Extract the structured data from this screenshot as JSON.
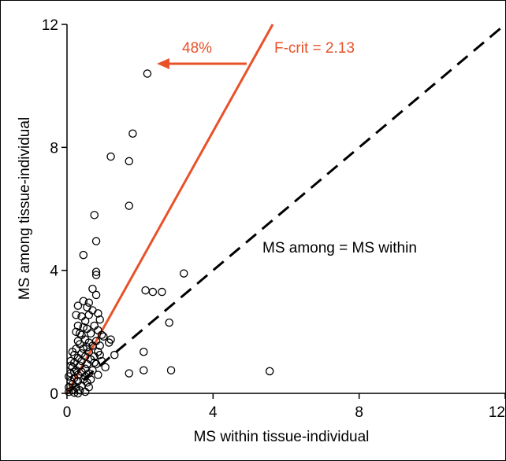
{
  "chart_data": {
    "type": "scatter",
    "title": "",
    "xlabel": "MS within tissue-individual",
    "ylabel": "MS among tissue-individual",
    "xlim": [
      0,
      12
    ],
    "ylim": [
      0,
      12
    ],
    "xticks": [
      "0",
      "4",
      "8",
      "12"
    ],
    "yticks": [
      "0",
      "4",
      "8",
      "12"
    ],
    "grid": false,
    "legend": "none",
    "colors": {
      "fcrit_line": "#e8522a",
      "identity_line": "#000000",
      "points": "#000000"
    },
    "reference_lines": [
      {
        "name": "identity",
        "label": "MS among = MS within",
        "slope": 1,
        "style": "dashed"
      },
      {
        "name": "fcrit",
        "label": "F-crit = 2.13",
        "slope": 2.13,
        "style": "solid"
      }
    ],
    "annotation": {
      "text": "48%",
      "direction": "left"
    },
    "points": [
      [
        2.2,
        10.4
      ],
      [
        1.8,
        8.45
      ],
      [
        1.2,
        7.7
      ],
      [
        1.7,
        7.55
      ],
      [
        1.7,
        6.1
      ],
      [
        0.75,
        5.8
      ],
      [
        0.8,
        4.95
      ],
      [
        0.45,
        4.5
      ],
      [
        0.8,
        3.95
      ],
      [
        0.8,
        3.85
      ],
      [
        0.7,
        3.4
      ],
      [
        3.2,
        3.9
      ],
      [
        2.15,
        3.35
      ],
      [
        2.35,
        3.3
      ],
      [
        2.6,
        3.3
      ],
      [
        0.8,
        3.2
      ],
      [
        0.45,
        3.0
      ],
      [
        0.6,
        2.95
      ],
      [
        0.3,
        2.85
      ],
      [
        0.55,
        2.8
      ],
      [
        0.7,
        2.7
      ],
      [
        0.85,
        2.6
      ],
      [
        0.4,
        2.5
      ],
      [
        0.6,
        2.55
      ],
      [
        0.9,
        2.4
      ],
      [
        0.5,
        2.35
      ],
      [
        0.3,
        2.2
      ],
      [
        0.75,
        2.2
      ],
      [
        0.55,
        2.1
      ],
      [
        0.85,
        2.05
      ],
      [
        0.25,
        2.0
      ],
      [
        0.65,
        1.95
      ],
      [
        0.95,
        1.9
      ],
      [
        0.4,
        1.9
      ],
      [
        1.0,
        1.85
      ],
      [
        0.5,
        1.75
      ],
      [
        0.8,
        1.7
      ],
      [
        1.2,
        1.75
      ],
      [
        1.15,
        1.65
      ],
      [
        0.3,
        1.7
      ],
      [
        0.6,
        1.65
      ],
      [
        0.35,
        1.6
      ],
      [
        0.9,
        1.55
      ],
      [
        0.55,
        1.5
      ],
      [
        0.7,
        1.55
      ],
      [
        0.45,
        1.45
      ],
      [
        0.25,
        1.45
      ],
      [
        1.3,
        1.25
      ],
      [
        0.85,
        1.35
      ],
      [
        0.6,
        1.35
      ],
      [
        0.4,
        1.3
      ],
      [
        0.2,
        1.25
      ],
      [
        0.5,
        1.2
      ],
      [
        0.75,
        1.2
      ],
      [
        0.3,
        1.15
      ],
      [
        0.65,
        1.1
      ],
      [
        0.95,
        1.05
      ],
      [
        0.4,
        1.05
      ],
      [
        0.2,
        1.0
      ],
      [
        0.55,
        0.95
      ],
      [
        0.8,
        0.95
      ],
      [
        0.35,
        0.9
      ],
      [
        1.05,
        0.85
      ],
      [
        0.15,
        0.85
      ],
      [
        0.5,
        0.8
      ],
      [
        0.25,
        0.75
      ],
      [
        0.7,
        0.75
      ],
      [
        0.4,
        0.7
      ],
      [
        0.6,
        0.65
      ],
      [
        0.1,
        0.65
      ],
      [
        0.3,
        0.6
      ],
      [
        0.85,
        0.6
      ],
      [
        0.5,
        0.55
      ],
      [
        0.2,
        0.5
      ],
      [
        0.45,
        0.45
      ],
      [
        0.65,
        0.45
      ],
      [
        0.1,
        0.4
      ],
      [
        0.3,
        0.4
      ],
      [
        0.55,
        0.35
      ],
      [
        0.15,
        0.3
      ],
      [
        0.4,
        0.25
      ],
      [
        0.25,
        0.2
      ],
      [
        0.6,
        0.2
      ],
      [
        0.05,
        0.2
      ],
      [
        0.35,
        0.1
      ],
      [
        0.15,
        0.1
      ],
      [
        0.5,
        0.05
      ],
      [
        0.2,
        0.02
      ],
      [
        0.05,
        0.05
      ],
      [
        0.3,
        0.0
      ],
      [
        0.1,
        1.05
      ],
      [
        0.1,
        0.9
      ],
      [
        0.2,
        0.7
      ],
      [
        0.05,
        0.55
      ],
      [
        0.15,
        1.35
      ],
      [
        0.35,
        1.95
      ],
      [
        0.45,
        2.15
      ],
      [
        0.25,
        2.55
      ],
      [
        0.75,
        1.0
      ],
      [
        0.9,
        1.25
      ],
      [
        2.1,
        1.35
      ],
      [
        1.7,
        0.65
      ],
      [
        2.1,
        0.75
      ],
      [
        2.85,
        0.75
      ],
      [
        5.55,
        0.72
      ],
      [
        2.8,
        2.3
      ]
    ]
  }
}
